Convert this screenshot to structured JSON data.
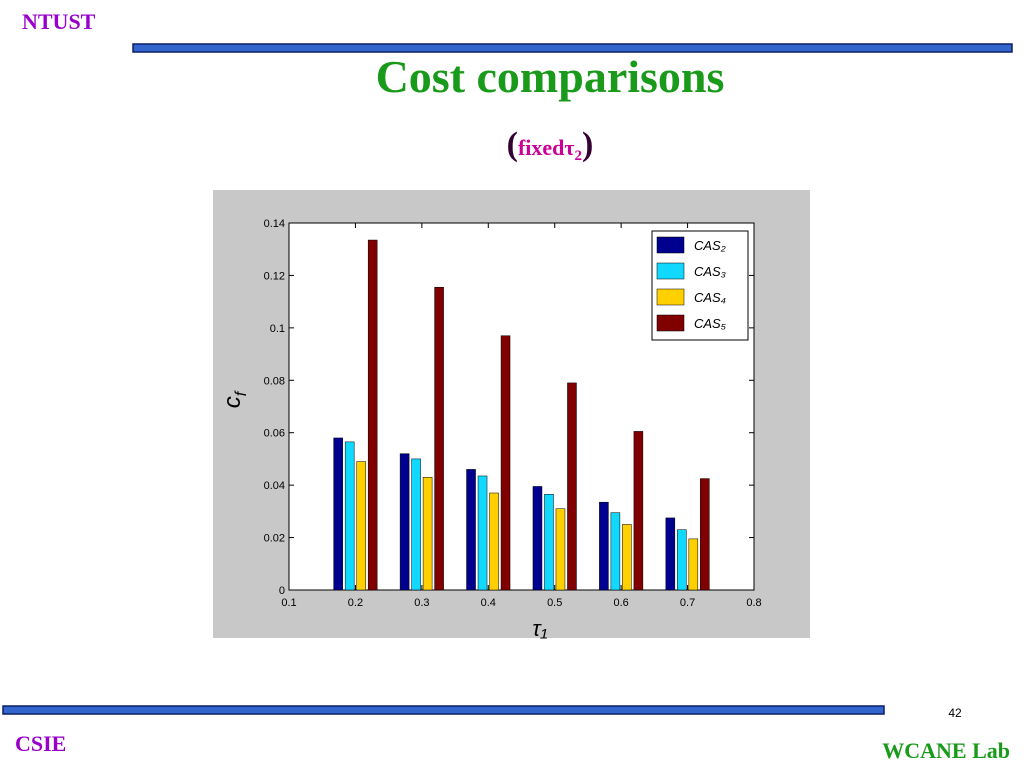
{
  "slide": {
    "org": "NTUST",
    "title": "Cost comparisons",
    "subtitle": [
      "(",
      "fixedτ",
      "2",
      ")"
    ],
    "page": "42",
    "left_footer": "CSIE",
    "right_footer": "WCANE Lab"
  },
  "chart_data": {
    "type": "bar",
    "x": [
      0.2,
      0.3,
      0.4,
      0.5,
      0.6,
      0.7
    ],
    "xlabel": "τ₁",
    "ylabel": "c",
    "ylabel_sub": "f",
    "series": [
      {
        "name": "CAS₂",
        "color": "#00008f",
        "values": [
          0.058,
          0.052,
          0.046,
          0.0395,
          0.0335,
          0.0275
        ]
      },
      {
        "name": "CAS₃",
        "color": "#10d8ff",
        "values": [
          0.0565,
          0.05,
          0.0435,
          0.0365,
          0.0295,
          0.023
        ]
      },
      {
        "name": "CAS₄",
        "color": "#ffcf00",
        "values": [
          0.049,
          0.043,
          0.037,
          0.031,
          0.025,
          0.0195
        ]
      },
      {
        "name": "CAS₅",
        "color": "#800000",
        "values": [
          0.1335,
          0.1155,
          0.097,
          0.079,
          0.0605,
          0.0425
        ]
      }
    ],
    "xlim": [
      0.1,
      0.8
    ],
    "xticks": [
      0.1,
      0.2,
      0.3,
      0.4,
      0.5,
      0.6,
      0.7,
      0.8
    ],
    "ylim": [
      0,
      0.14
    ],
    "yticks": [
      0,
      0.02,
      0.04,
      0.06,
      0.08,
      0.1,
      0.12,
      0.14
    ],
    "legend": "upper right"
  }
}
